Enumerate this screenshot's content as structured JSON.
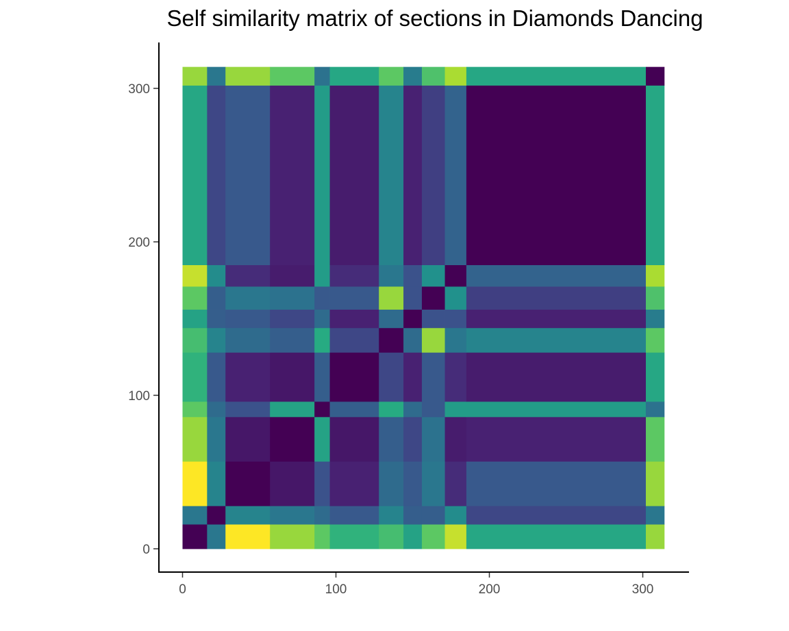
{
  "chart_data": {
    "type": "heatmap",
    "title": "Self similarity matrix of sections in Diamonds Dancing",
    "xlabel": "",
    "ylabel": "",
    "xlim": [
      -15,
      328
    ],
    "ylim": [
      -15,
      328
    ],
    "x_ticks": [
      "0",
      "100",
      "200",
      "300"
    ],
    "y_ticks": [
      "0",
      "100",
      "200",
      "300"
    ],
    "colormap": "viridis",
    "grid": false,
    "legend": "none",
    "section_boundaries": [
      0,
      16,
      28,
      57,
      86,
      96,
      128,
      144,
      156,
      171,
      185,
      302,
      314
    ],
    "values": [
      [
        0.0,
        0.4,
        1.0,
        0.85,
        0.75,
        0.65,
        0.7,
        0.58,
        0.75,
        0.92,
        0.6,
        0.85
      ],
      [
        0.4,
        0.0,
        0.45,
        0.4,
        0.35,
        0.28,
        0.45,
        0.3,
        0.3,
        0.48,
        0.22,
        0.4
      ],
      [
        1.0,
        0.45,
        0.0,
        0.08,
        0.25,
        0.12,
        0.35,
        0.28,
        0.4,
        0.15,
        0.28,
        0.85
      ],
      [
        0.85,
        0.4,
        0.08,
        0.0,
        0.58,
        0.08,
        0.3,
        0.22,
        0.38,
        0.1,
        0.12,
        0.75
      ],
      [
        0.75,
        0.35,
        0.25,
        0.58,
        0.0,
        0.3,
        0.62,
        0.35,
        0.28,
        0.55,
        0.55,
        0.38
      ],
      [
        0.65,
        0.28,
        0.12,
        0.08,
        0.3,
        0.0,
        0.22,
        0.12,
        0.28,
        0.15,
        0.1,
        0.6
      ],
      [
        0.7,
        0.45,
        0.35,
        0.3,
        0.62,
        0.22,
        0.0,
        0.35,
        0.85,
        0.4,
        0.45,
        0.75
      ],
      [
        0.58,
        0.3,
        0.28,
        0.22,
        0.35,
        0.12,
        0.35,
        0.0,
        0.25,
        0.25,
        0.12,
        0.42
      ],
      [
        0.75,
        0.3,
        0.4,
        0.38,
        0.28,
        0.28,
        0.85,
        0.25,
        0.0,
        0.5,
        0.2,
        0.72
      ],
      [
        0.92,
        0.48,
        0.15,
        0.1,
        0.55,
        0.15,
        0.4,
        0.25,
        0.5,
        0.0,
        0.32,
        0.88
      ],
      [
        0.6,
        0.22,
        0.28,
        0.12,
        0.55,
        0.1,
        0.45,
        0.12,
        0.2,
        0.32,
        0.0,
        0.6
      ],
      [
        0.85,
        0.4,
        0.85,
        0.75,
        0.38,
        0.6,
        0.75,
        0.42,
        0.72,
        0.88,
        0.6,
        0.0
      ]
    ]
  }
}
